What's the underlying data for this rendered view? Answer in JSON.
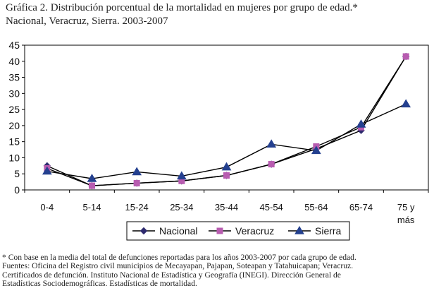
{
  "title": {
    "line1": "Gráfica 2. Distribución porcentual de la mortalidad en mujeres por grupo de edad.*",
    "line2": "Nacional, Veracruz, Sierra. 2003-2007"
  },
  "notes": {
    "line1": "* Con base en la media del total de defunciones reportadas para los años 2003-2007 por cada grupo de edad.",
    "line2": "Fuentes: Oficina del Registro civil municipios de Mecayapan, Pajapan, Soteapan y Tatahuicapan; Veracruz.",
    "line3": "Certificados de defunción. Instituto Nacional de Estadística y Geografía (INEGI). Dirección General de",
    "line4": "Estadísticas Sociodemográficas. Estadísticas de mortalidad."
  },
  "chart_data": {
    "type": "line",
    "title": "Distribución porcentual de la mortalidad en mujeres por grupo de edad",
    "xlabel": "",
    "ylabel": "",
    "categories": [
      "0-4",
      "5-14",
      "15-24",
      "25-34",
      "35-44",
      "45-54",
      "55-64",
      "65-74",
      "75 y más"
    ],
    "yticks": [
      0,
      5,
      10,
      15,
      20,
      25,
      30,
      35,
      40,
      45
    ],
    "ylim": [
      0,
      45
    ],
    "grid": false,
    "legend_position": "bottom",
    "series": [
      {
        "name": "Nacional",
        "color": "#2E2B6E",
        "marker": "diamond",
        "values": [
          7.5,
          1.3,
          2.1,
          2.8,
          4.5,
          8.0,
          12.8,
          18.5,
          41.5
        ]
      },
      {
        "name": "Veracruz",
        "color": "#B85CB0",
        "marker": "square",
        "values": [
          6.7,
          1.3,
          2.1,
          2.8,
          4.5,
          8.0,
          13.5,
          19.5,
          41.5
        ]
      },
      {
        "name": "Sierra",
        "color": "#24408F",
        "marker": "triangle",
        "values": [
          5.8,
          3.5,
          5.6,
          4.3,
          7.1,
          14.2,
          12.2,
          20.4,
          26.7
        ]
      }
    ]
  }
}
